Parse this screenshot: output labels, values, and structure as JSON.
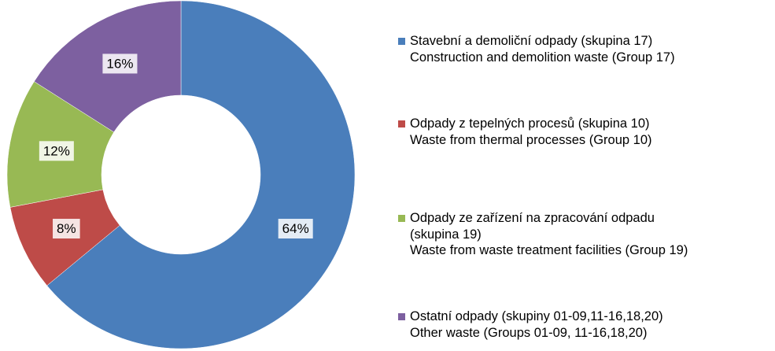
{
  "chart_data": {
    "type": "pie",
    "categories": [
      "Stavební a demoliční odpady (skupina 17)\nConstruction and demolition waste (Group 17)",
      "Odpady z tepelných procesů (skupina 10)\nWaste from thermal processes (Group 10)",
      "Odpady ze zařízení na zpracování odpadu\n(skupina 19)\nWaste from waste treatment facilities (Group 19)",
      "Ostatní odpady  (skupiny 01-09,11-16,18,20)\nOther waste (Groups 01-09, 11-16,18,20)"
    ],
    "values": [
      64,
      8,
      12,
      16
    ],
    "value_labels": [
      "64%",
      "8%",
      "12%",
      "16%"
    ],
    "colors": [
      "#4a7ebb",
      "#be4b48",
      "#98b954",
      "#7d60a0"
    ],
    "legend": "right"
  }
}
